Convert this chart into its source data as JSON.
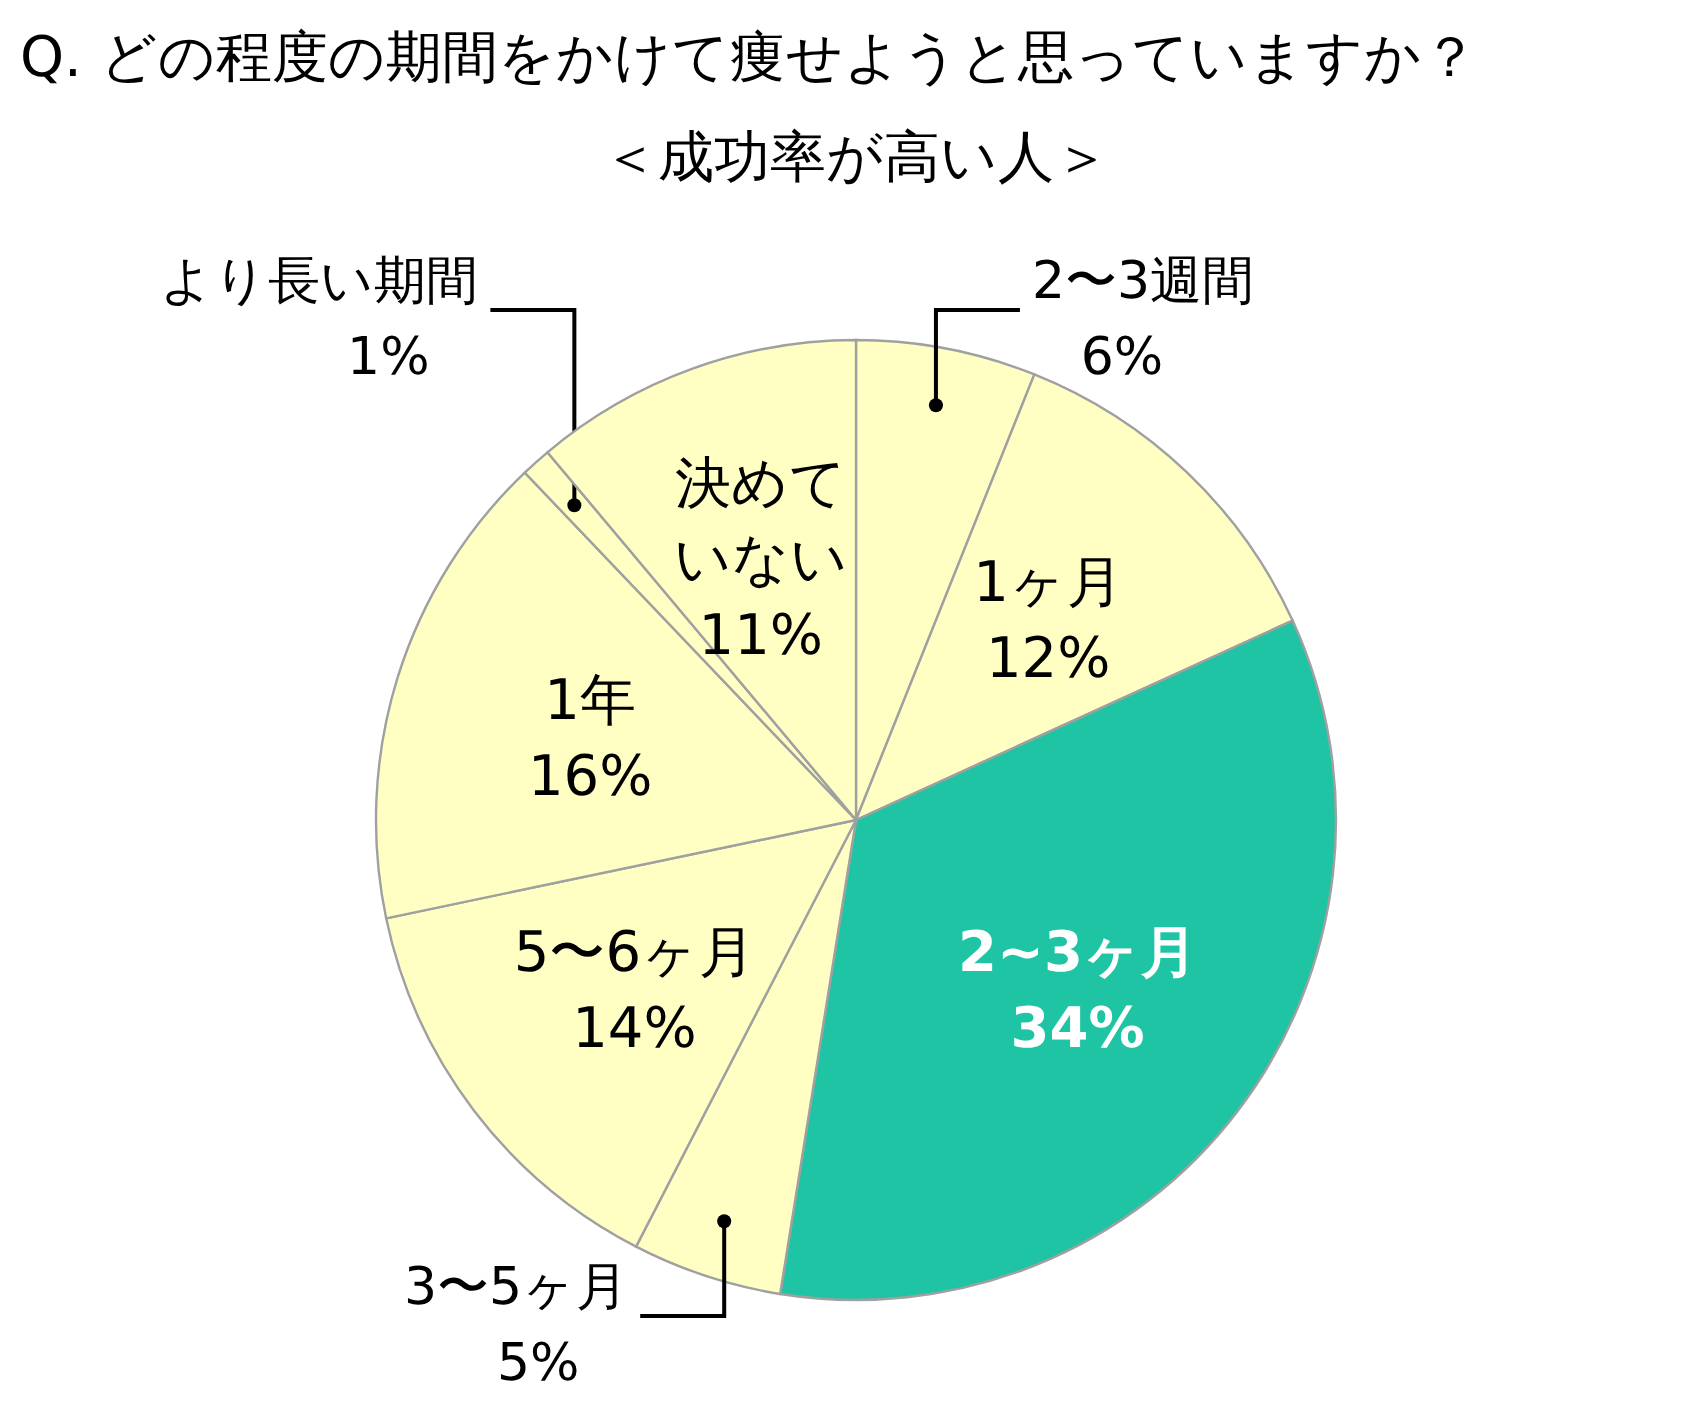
{
  "chart_data": {
    "type": "pie",
    "title": "Q. どの程度の期間をかけて痩せようと思っていますか？",
    "subtitle": "＜成功率が高い人＞",
    "categories": [
      "2〜3週間",
      "1ヶ月",
      "2~3ヶ月",
      "3〜5ヶ月",
      "5〜6ヶ月",
      "1年",
      "より長い期間",
      "決めていない"
    ],
    "values": [
      6,
      12,
      34,
      5,
      14,
      16,
      1,
      11
    ],
    "value_labels": [
      "6%",
      "12%",
      "34%",
      "5%",
      "14%",
      "16%",
      "1%",
      "11%"
    ],
    "colors": [
      "#ffffc4",
      "#ffffc4",
      "#1fc4a4",
      "#ffffc4",
      "#ffffc4",
      "#ffffc4",
      "#ffffc4",
      "#ffffc4"
    ]
  }
}
